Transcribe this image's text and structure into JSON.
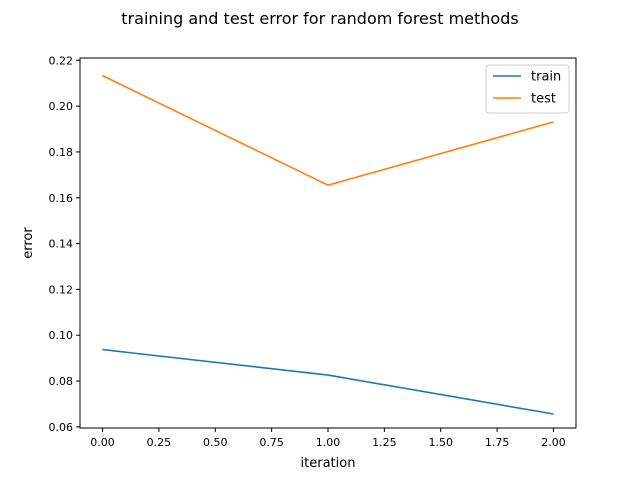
{
  "chart_data": {
    "type": "line",
    "title": "training and test error for random forest methods",
    "xlabel": "iteration",
    "ylabel": "error",
    "x": [
      0,
      1,
      2
    ],
    "xlim": [
      -0.1,
      2.1
    ],
    "ylim": [
      0.0595,
      0.221
    ],
    "xticks": [
      0.0,
      0.25,
      0.5,
      0.75,
      1.0,
      1.25,
      1.5,
      1.75,
      2.0
    ],
    "xtick_labels": [
      "0.00",
      "0.25",
      "0.50",
      "0.75",
      "1.00",
      "1.25",
      "1.50",
      "1.75",
      "2.00"
    ],
    "yticks": [
      0.06,
      0.08,
      0.1,
      0.12,
      0.14,
      0.16,
      0.18,
      0.2,
      0.22
    ],
    "ytick_labels": [
      "0.06",
      "0.08",
      "0.10",
      "0.12",
      "0.14",
      "0.16",
      "0.18",
      "0.20",
      "0.22"
    ],
    "grid": false,
    "legend_position": "top-right",
    "series": [
      {
        "name": "train",
        "color": "#1f77b4",
        "values": [
          0.0937,
          0.0826,
          0.0656
        ]
      },
      {
        "name": "test",
        "color": "#ff7f0e",
        "values": [
          0.2133,
          0.1655,
          0.1931
        ]
      }
    ]
  }
}
